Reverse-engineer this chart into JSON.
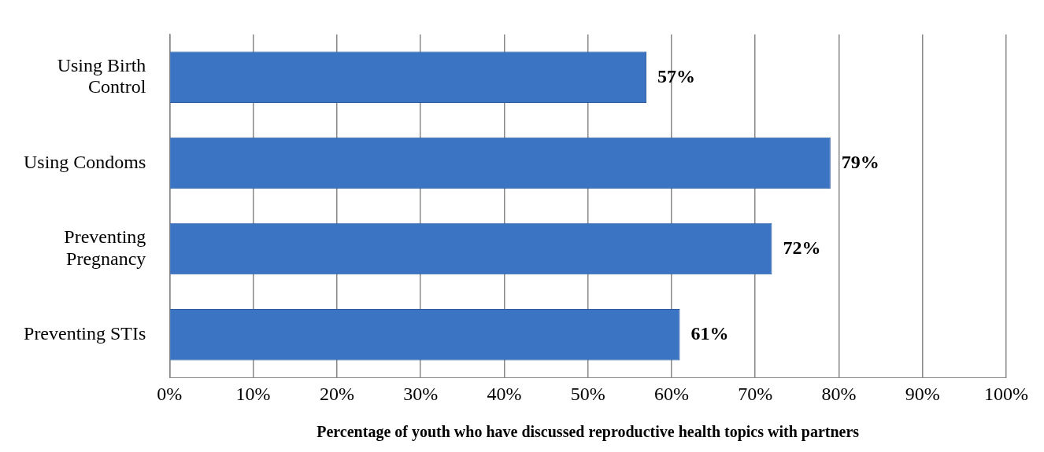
{
  "chart_data": {
    "type": "bar",
    "orientation": "horizontal",
    "xlabel": "Percentage of youth who have discussed reproductive health topics with partners",
    "categories": [
      "Using Birth Control",
      "Using Condoms",
      "Preventing Pregnancy",
      "Preventing STIs"
    ],
    "values": [
      57,
      79,
      72,
      61
    ],
    "color": "#3b74c2",
    "value_labels": [
      "57%",
      "79%",
      "72%",
      "61%"
    ],
    "xlim": [
      0,
      100
    ],
    "xticks": [
      {
        "value": 0,
        "label": "0%"
      },
      {
        "value": 10,
        "label": "10%"
      },
      {
        "value": 20,
        "label": "20%"
      },
      {
        "value": 30,
        "label": "30%"
      },
      {
        "value": 40,
        "label": "40%"
      },
      {
        "value": 50,
        "label": "50%"
      },
      {
        "value": 60,
        "label": "60%"
      },
      {
        "value": 70,
        "label": "70%"
      },
      {
        "value": 80,
        "label": "80%"
      },
      {
        "value": 90,
        "label": "90%"
      },
      {
        "value": 100,
        "label": "100%"
      }
    ],
    "grid": "x",
    "legend": false
  }
}
